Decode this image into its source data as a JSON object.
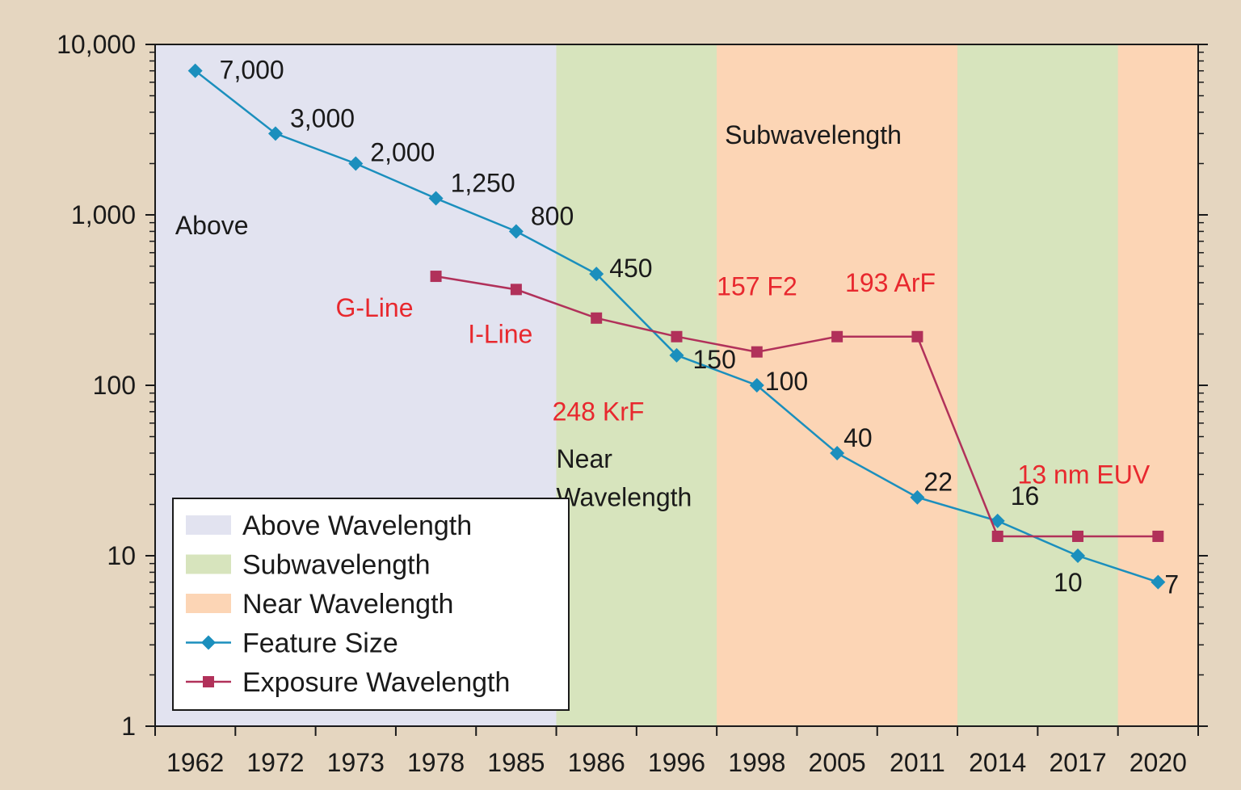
{
  "chart_data": {
    "type": "line",
    "y_scale": "log",
    "ylim": [
      1,
      10000
    ],
    "y_ticks": [
      {
        "value": 1,
        "label": "1"
      },
      {
        "value": 10,
        "label": "10"
      },
      {
        "value": 100,
        "label": "100"
      },
      {
        "value": 1000,
        "label": "1,000"
      },
      {
        "value": 10000,
        "label": "10,000"
      }
    ],
    "categories": [
      "1962",
      "1972",
      "1973",
      "1978",
      "1985",
      "1986",
      "1996",
      "1998",
      "2005",
      "2011",
      "2014",
      "2017",
      "2020"
    ],
    "regions": [
      {
        "name": "Above Wavelength",
        "from": 0,
        "to": 5,
        "color": "#e2e3f0"
      },
      {
        "name": "Subwavelength",
        "from": 5,
        "to": 7,
        "color": "#d7e4bd"
      },
      {
        "name": "Near Wavelength",
        "from": 7,
        "to": 10,
        "color": "#fcd5b5"
      },
      {
        "name": "Subwavelength",
        "from": 10,
        "to": 12,
        "color": "#d7e4bd"
      },
      {
        "name": "Near Wavelength",
        "from": 12,
        "to": 13,
        "color": "#fcd5b5"
      }
    ],
    "region_labels": [
      {
        "text": "Above",
        "x": 0.25,
        "y": 870
      },
      {
        "text": "Subwavelength",
        "x": 7.1,
        "y": 2950
      },
      {
        "text": "Near",
        "x": 5.0,
        "y": 37
      },
      {
        "text": "Wavelength",
        "x": 5.0,
        "y": 22
      }
    ],
    "series": [
      {
        "name": "Feature Size",
        "color": "#1b8fbd",
        "marker": "diamond",
        "points": [
          {
            "x": 0.5,
            "y": 7000,
            "label": "7,000"
          },
          {
            "x": 1.5,
            "y": 3000,
            "label": "3,000"
          },
          {
            "x": 2.5,
            "y": 2000,
            "label": "2,000"
          },
          {
            "x": 3.5,
            "y": 1250,
            "label": "1,250"
          },
          {
            "x": 4.5,
            "y": 800,
            "label": "800"
          },
          {
            "x": 5.5,
            "y": 450,
            "label": "450"
          },
          {
            "x": 6.5,
            "y": 150,
            "label": "150"
          },
          {
            "x": 7.5,
            "y": 100,
            "label": "100"
          },
          {
            "x": 8.5,
            "y": 40,
            "label": "40"
          },
          {
            "x": 9.5,
            "y": 22,
            "label": "22"
          },
          {
            "x": 10.5,
            "y": 16,
            "label": "16"
          },
          {
            "x": 11.5,
            "y": 10,
            "label": "10"
          },
          {
            "x": 12.5,
            "y": 7,
            "label": "7"
          }
        ]
      },
      {
        "name": "Exposure Wavelength",
        "color": "#b1315a",
        "marker": "square",
        "points": [
          {
            "x": 3.5,
            "y": 436
          },
          {
            "x": 4.5,
            "y": 365
          },
          {
            "x": 5.5,
            "y": 248
          },
          {
            "x": 6.5,
            "y": 193
          },
          {
            "x": 7.5,
            "y": 157
          },
          {
            "x": 8.5,
            "y": 193
          },
          {
            "x": 9.5,
            "y": 193
          },
          {
            "x": 10.5,
            "y": 13
          },
          {
            "x": 11.5,
            "y": 13
          },
          {
            "x": 12.5,
            "y": 13
          }
        ]
      }
    ],
    "annotations": [
      {
        "text": "G-Line",
        "x": 2.25,
        "y": 285
      },
      {
        "text": "I-Line",
        "x": 3.9,
        "y": 200
      },
      {
        "text": "248 KrF",
        "x": 4.95,
        "y": 70
      },
      {
        "text": "157 F2",
        "x": 7.0,
        "y": 380
      },
      {
        "text": "193 ArF",
        "x": 8.6,
        "y": 400
      },
      {
        "text": "13 nm EUV",
        "x": 10.75,
        "y": 30
      }
    ],
    "legend": {
      "position": "bottom-left",
      "entries": [
        {
          "label": "Above Wavelength",
          "kind": "patch",
          "color": "#e2e3f0"
        },
        {
          "label": "Subwavelength",
          "kind": "patch",
          "color": "#d7e4bd"
        },
        {
          "label": "Near Wavelength",
          "kind": "patch",
          "color": "#fcd5b5"
        },
        {
          "label": "Feature Size",
          "kind": "line",
          "color": "#1b8fbd",
          "marker": "diamond"
        },
        {
          "label": "Exposure Wavelength",
          "kind": "line",
          "color": "#b1315a",
          "marker": "square"
        }
      ]
    }
  }
}
